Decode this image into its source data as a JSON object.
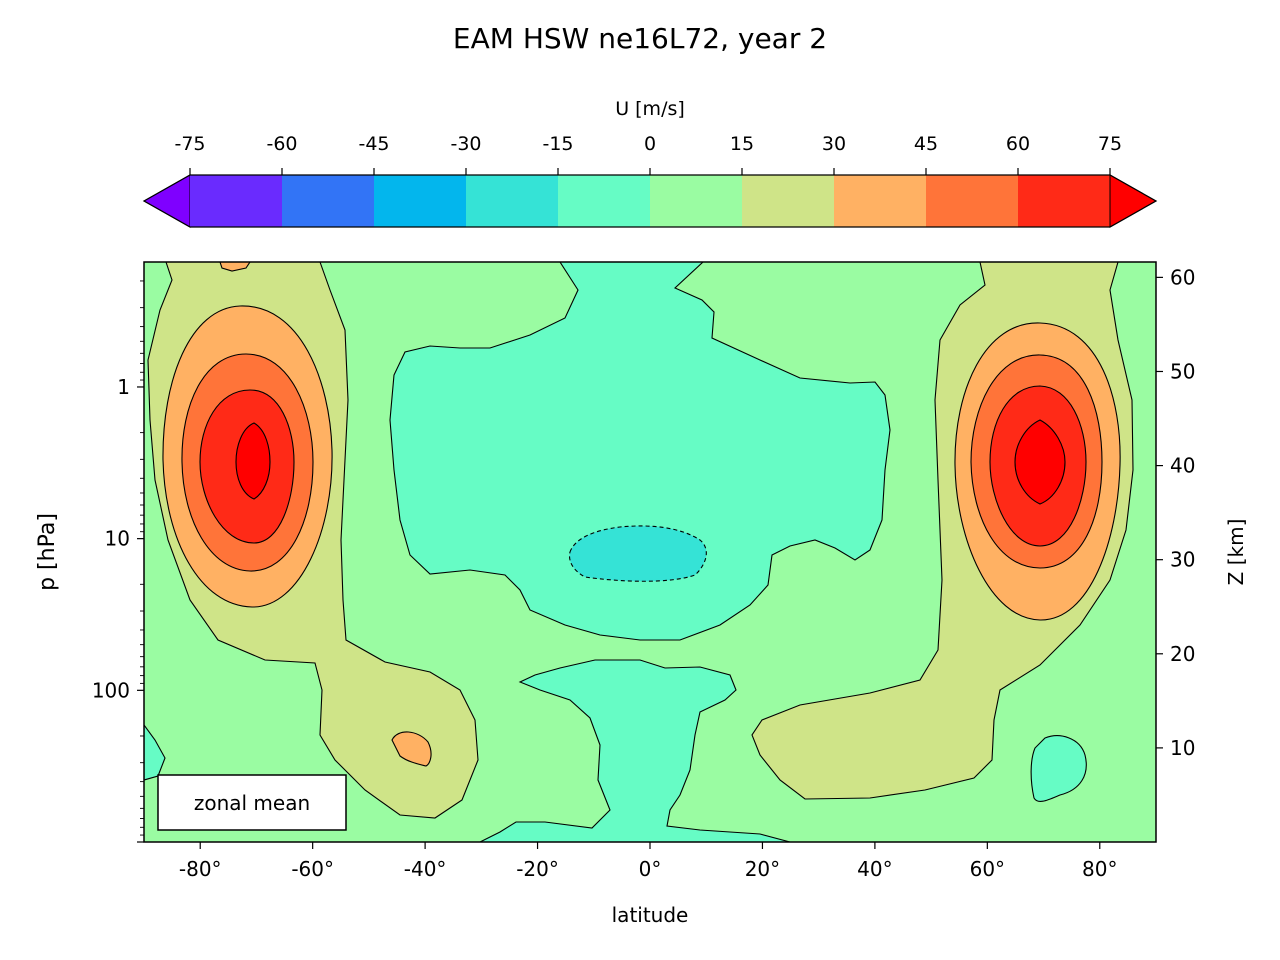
{
  "chart_data": {
    "type": "contour",
    "title": "EAM HSW ne16L72, year 2",
    "field_label": "U [m/s]",
    "xlabel": "latitude",
    "ylabel": "p  [hPa]",
    "ylabel_right": "Z [km]",
    "annotation": "zonal mean",
    "xlim": [
      -90,
      90
    ],
    "x_ticks": [
      -80,
      -60,
      -40,
      -20,
      0,
      20,
      40,
      60,
      80
    ],
    "x_tick_labels": [
      "-80°",
      "-60°",
      "-40°",
      "-20°",
      "0°",
      "20°",
      "40°",
      "60°",
      "80°"
    ],
    "y_scale": "log",
    "ylim_hpa": [
      1000,
      0.15
    ],
    "y_ticks": [
      1,
      10,
      100
    ],
    "y_tick_labels": [
      "1",
      "10",
      "100"
    ],
    "z_ticks_km": [
      10,
      20,
      30,
      40,
      50,
      60
    ],
    "z_tick_labels": [
      "10",
      "20",
      "30",
      "40",
      "50",
      "60"
    ],
    "contour_levels": [
      -75,
      -60,
      -45,
      -30,
      -15,
      0,
      15,
      30,
      45,
      60,
      75
    ],
    "level_labels": [
      "-75",
      "-60",
      "-45",
      "-30",
      "-15",
      "0",
      "15",
      "30",
      "45",
      "60",
      "75"
    ],
    "colormap": [
      "#7f00ff",
      "#6a2bfe",
      "#3274f6",
      "#03b6ed",
      "#35e3d6",
      "#66fcc5",
      "#9afca2",
      "#cfe488",
      "#ffb163",
      "#ff7439",
      "#ff2a17",
      "#ff0000"
    ],
    "extend": "both",
    "features": [
      {
        "name": "southern polar jet",
        "lat": -71,
        "p_hpa": 2.5,
        "max_band": ">75"
      },
      {
        "name": "northern polar jet",
        "lat": 70,
        "p_hpa": 2.5,
        "max_band": ">75"
      },
      {
        "name": "tropical stratosphere",
        "lat": 0,
        "p_hpa": 12,
        "min_band": "-30 to -15"
      },
      {
        "name": "southern subtropical upper troposphere",
        "lat": -40,
        "p_hpa": 200,
        "band": "30 to 45"
      },
      {
        "name": "tropical troposphere",
        "lat": 0,
        "p_hpa": 250,
        "band": "-15 to 0"
      },
      {
        "name": "northern high-latitude troposphere",
        "lat": 72,
        "p_hpa": 300,
        "band": "-15 to 0"
      }
    ]
  }
}
